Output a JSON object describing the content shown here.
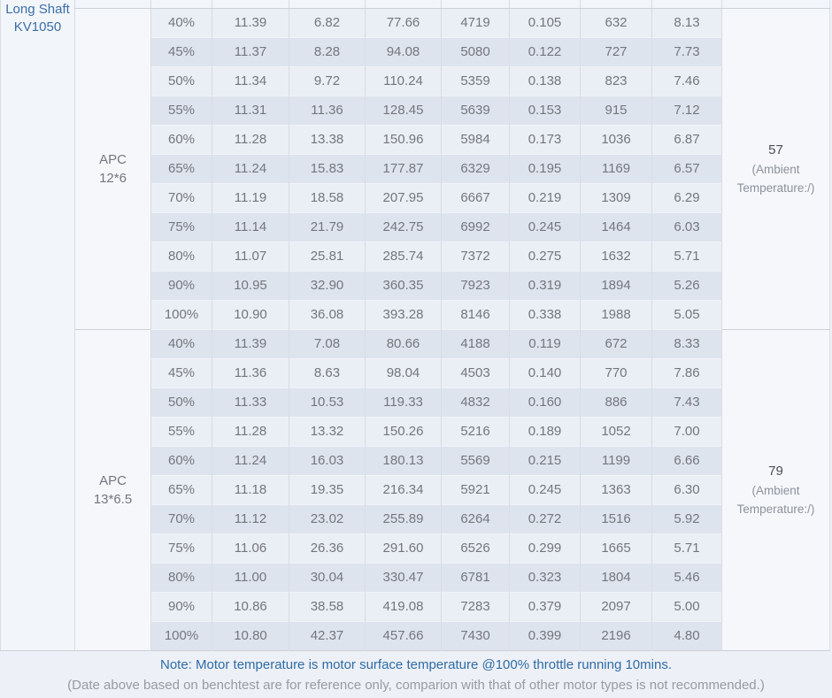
{
  "motor": {
    "line1": "Long Shaft",
    "line2": "KV1050"
  },
  "blocks": [
    {
      "propeller": {
        "line1": "APC",
        "line2": "12*6"
      },
      "temperature": {
        "value": "57",
        "note_line1": "(Ambient",
        "note_line2": "Temperature:/)"
      },
      "rows": [
        [
          "40%",
          "11.39",
          "6.82",
          "77.66",
          "4719",
          "0.105",
          "632",
          "8.13"
        ],
        [
          "45%",
          "11.37",
          "8.28",
          "94.08",
          "5080",
          "0.122",
          "727",
          "7.73"
        ],
        [
          "50%",
          "11.34",
          "9.72",
          "110.24",
          "5359",
          "0.138",
          "823",
          "7.46"
        ],
        [
          "55%",
          "11.31",
          "11.36",
          "128.45",
          "5639",
          "0.153",
          "915",
          "7.12"
        ],
        [
          "60%",
          "11.28",
          "13.38",
          "150.96",
          "5984",
          "0.173",
          "1036",
          "6.87"
        ],
        [
          "65%",
          "11.24",
          "15.83",
          "177.87",
          "6329",
          "0.195",
          "1169",
          "6.57"
        ],
        [
          "70%",
          "11.19",
          "18.58",
          "207.95",
          "6667",
          "0.219",
          "1309",
          "6.29"
        ],
        [
          "75%",
          "11.14",
          "21.79",
          "242.75",
          "6992",
          "0.245",
          "1464",
          "6.03"
        ],
        [
          "80%",
          "11.07",
          "25.81",
          "285.74",
          "7372",
          "0.275",
          "1632",
          "5.71"
        ],
        [
          "90%",
          "10.95",
          "32.90",
          "360.35",
          "7923",
          "0.319",
          "1894",
          "5.26"
        ],
        [
          "100%",
          "10.90",
          "36.08",
          "393.28",
          "8146",
          "0.338",
          "1988",
          "5.05"
        ]
      ]
    },
    {
      "propeller": {
        "line1": "APC",
        "line2": "13*6.5"
      },
      "temperature": {
        "value": "79",
        "note_line1": "(Ambient",
        "note_line2": "Temperature:/)"
      },
      "rows": [
        [
          "40%",
          "11.39",
          "7.08",
          "80.66",
          "4188",
          "0.119",
          "672",
          "8.33"
        ],
        [
          "45%",
          "11.36",
          "8.63",
          "98.04",
          "4503",
          "0.140",
          "770",
          "7.86"
        ],
        [
          "50%",
          "11.33",
          "10.53",
          "119.33",
          "4832",
          "0.160",
          "886",
          "7.43"
        ],
        [
          "55%",
          "11.28",
          "13.32",
          "150.26",
          "5216",
          "0.189",
          "1052",
          "7.00"
        ],
        [
          "60%",
          "11.24",
          "16.03",
          "180.13",
          "5569",
          "0.215",
          "1199",
          "6.66"
        ],
        [
          "65%",
          "11.18",
          "19.35",
          "216.34",
          "5921",
          "0.245",
          "1363",
          "6.30"
        ],
        [
          "70%",
          "11.12",
          "23.02",
          "255.89",
          "6264",
          "0.272",
          "1516",
          "5.92"
        ],
        [
          "75%",
          "11.06",
          "26.36",
          "291.60",
          "6526",
          "0.299",
          "1665",
          "5.71"
        ],
        [
          "80%",
          "11.00",
          "30.04",
          "330.47",
          "6781",
          "0.323",
          "1804",
          "5.46"
        ],
        [
          "90%",
          "10.86",
          "38.58",
          "419.08",
          "7283",
          "0.379",
          "2097",
          "5.00"
        ],
        [
          "100%",
          "10.80",
          "42.37",
          "457.66",
          "7430",
          "0.399",
          "2196",
          "4.80"
        ]
      ]
    }
  ],
  "footer": {
    "note_primary": "Note: Motor temperature is motor surface temperature @100% throttle running 10mins.",
    "note_secondary": "(Date above based on benchtest are for reference only, comparion with that of other motor types is not recommended.)"
  },
  "colors": {
    "accent_blue": "#3b6fa9",
    "note_blue": "#2e6ca6",
    "row_light": "#eaeef5",
    "row_dark": "#dee4ee",
    "merged_cell": "#f5f7fb",
    "border": "#d9dce2",
    "text_gray": "#73777d"
  }
}
